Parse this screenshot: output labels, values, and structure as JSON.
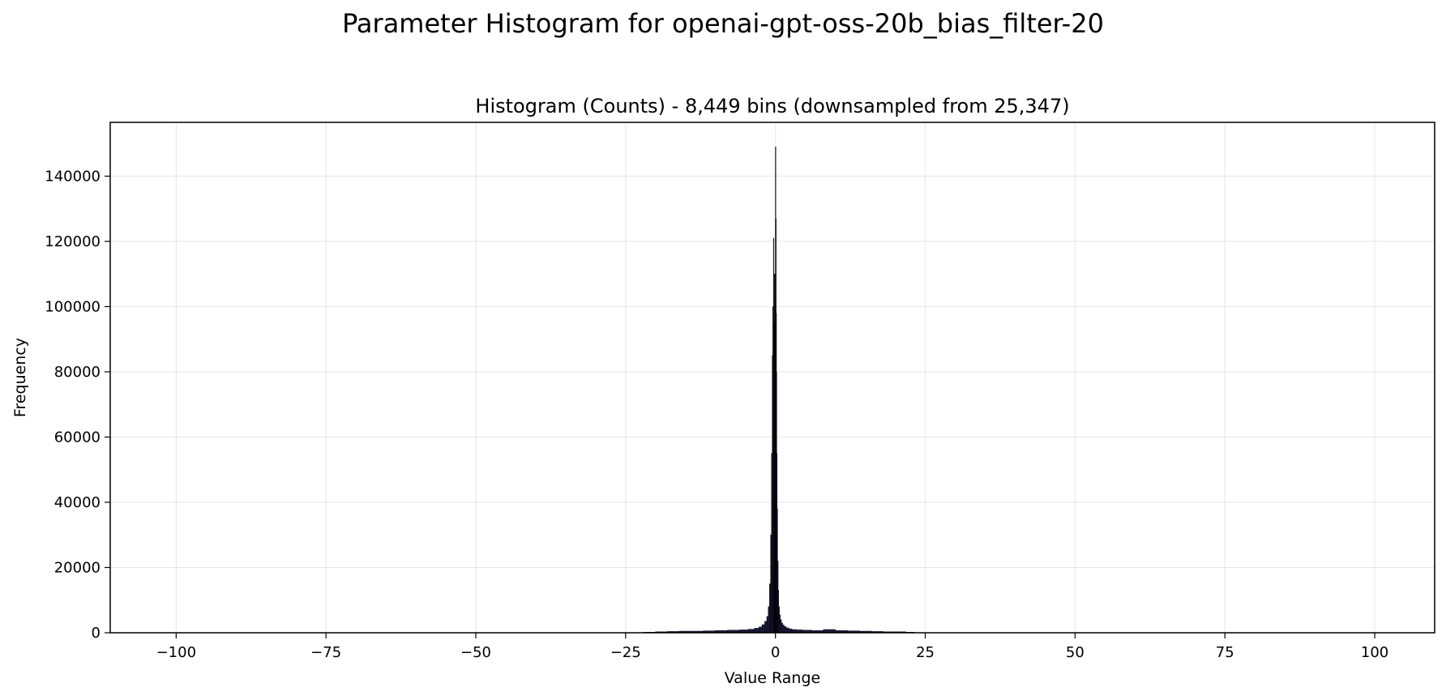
{
  "figure": {
    "suptitle": "Parameter Histogram for openai-gpt-oss-20b_bias_filter-20"
  },
  "chart_data": {
    "type": "bar",
    "title": "Histogram (Counts) - 8,449 bins (downsampled from 25,347)",
    "xlabel": "Value Range",
    "ylabel": "Frequency",
    "xlim": [
      -111,
      110
    ],
    "ylim": [
      0,
      156500
    ],
    "x_ticks": [
      -100,
      -75,
      -50,
      -25,
      0,
      25,
      50,
      75,
      100
    ],
    "x_tick_labels": [
      "−100",
      "−75",
      "−50",
      "−25",
      "0",
      "25",
      "50",
      "75",
      "100"
    ],
    "y_ticks": [
      0,
      20000,
      40000,
      60000,
      80000,
      100000,
      120000,
      140000
    ],
    "y_tick_labels": [
      "0",
      "20000",
      "40000",
      "60000",
      "80000",
      "100000",
      "120000",
      "140000"
    ],
    "grid": true,
    "bar_color": "#1a1a3a",
    "bar_edge_color": "#000000",
    "x": [
      -21.0,
      -19.0,
      -17.0,
      -15.0,
      -13.0,
      -11.0,
      -9.0,
      -7.0,
      -5.0,
      -4.0,
      -3.0,
      -2.5,
      -2.0,
      -1.6,
      -1.3,
      -1.1,
      -0.9,
      -0.75,
      -0.6,
      -0.5,
      -0.4,
      -0.3,
      -0.22,
      -0.15,
      -0.1,
      -0.05,
      0.0,
      0.05,
      0.1,
      0.15,
      0.22,
      0.3,
      0.4,
      0.5,
      0.6,
      0.75,
      0.9,
      1.1,
      1.3,
      1.6,
      2.0,
      2.5,
      3.0,
      4.0,
      5.0,
      7.0,
      9.0,
      11.0,
      13.0,
      15.0,
      17.0,
      19.0,
      21.0,
      22.5
    ],
    "values": [
      200,
      300,
      400,
      500,
      500,
      600,
      700,
      800,
      900,
      1100,
      1400,
      1800,
      2500,
      3500,
      5000,
      8000,
      15000,
      30000,
      55000,
      85000,
      100000,
      121000,
      95000,
      110000,
      101000,
      97000,
      149000,
      127000,
      98000,
      80000,
      55000,
      38000,
      22000,
      13000,
      8000,
      5500,
      4000,
      3000,
      2400,
      1900,
      1500,
      1200,
      1000,
      900,
      800,
      700,
      1000,
      700,
      600,
      500,
      400,
      300,
      300,
      200
    ]
  }
}
